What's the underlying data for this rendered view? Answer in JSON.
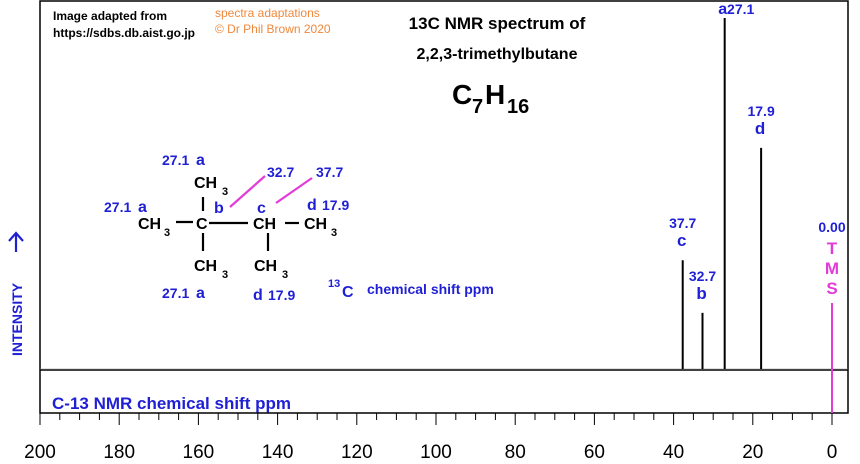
{
  "credits": {
    "adapted_line1": "Image adapted from",
    "adapted_line2": "https://sdbs.db.aist.go.jp",
    "adapt_line1": "spectra adaptations",
    "adapt_line2": "© Dr Phil Brown 2020"
  },
  "heading": {
    "line1": "13C NMR spectrum of",
    "line2": "2,2,3-trimethylbutane",
    "formula_c": "C",
    "formula_c_sub": "7",
    "formula_h": "H",
    "formula_h_sub": "16"
  },
  "axis_label": "INTENSITY",
  "xlabel": "C-13 NMR chemical shift ppm",
  "shift_caption": {
    "sup": "13",
    "letter": "C",
    "text": "chemical shift ppm"
  },
  "structure": {
    "ch3": "CH",
    "ch3_sub": "3",
    "c": "C",
    "ch": "CH",
    "label_a": "a",
    "label_b": "b",
    "label_c": "c",
    "label_d": "d",
    "val_a": "27.1",
    "val_b": "32.7",
    "val_c": "37.7",
    "val_d": "17.9"
  },
  "colors": {
    "blue": "#1f1fd6",
    "magenta": "#e23bd8",
    "orange": "#f0883c",
    "black": "#000000"
  },
  "chart_data": {
    "type": "line",
    "title": "13C NMR spectrum of 2,2,3-trimethylbutane",
    "xlabel": "C-13 NMR chemical shift ppm",
    "ylabel": "INTENSITY",
    "xlim": [
      200,
      -5
    ],
    "x_reversed": true,
    "ticks": [
      200,
      180,
      160,
      140,
      120,
      100,
      80,
      60,
      40,
      20,
      0
    ],
    "peaks": [
      {
        "shift": 37.7,
        "label": "c",
        "value_text": "37.7",
        "intensity": 0.31
      },
      {
        "shift": 32.7,
        "label": "b",
        "value_text": "32.7",
        "intensity": 0.16
      },
      {
        "shift": 27.1,
        "label": "a",
        "value_text": "27.1",
        "intensity": 1.0
      },
      {
        "shift": 17.9,
        "label": "d",
        "value_text": "17.9",
        "intensity": 0.63
      }
    ],
    "reference": {
      "shift": 0.0,
      "value_text": "0.00",
      "label": "TMS",
      "letters": [
        "T",
        "M",
        "S"
      ]
    }
  }
}
